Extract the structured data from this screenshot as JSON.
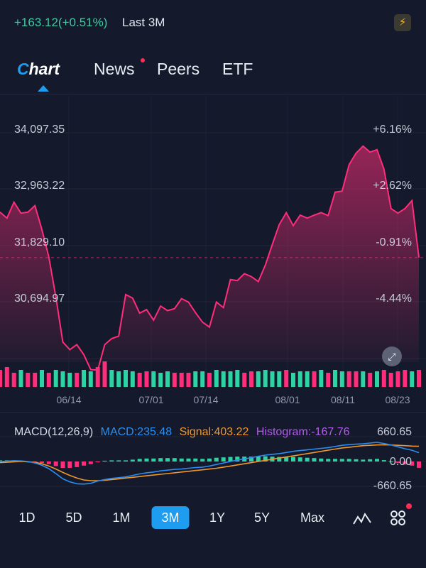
{
  "header": {
    "change": "+163.12(+0.51%)",
    "range_label": "Last 3M",
    "bolt_icon": "lightning-icon"
  },
  "tabs": [
    {
      "label": "Chart"
    },
    {
      "label": "News"
    },
    {
      "label": "Peers"
    },
    {
      "label": "ETF"
    }
  ],
  "colors": {
    "price_line": "#ff2d7a",
    "up": "#2ed3a4",
    "down": "#ff2d7a",
    "macd": "#2a8df0",
    "signal": "#f0962a",
    "histogram": "#b25ee8",
    "accent": "#1e9cf0"
  },
  "chart_data": [
    {
      "type": "area",
      "y_ticks": [
        "34,097.35",
        "32,963.22",
        "31,829.10",
        "30,694.97"
      ],
      "pct_ticks": [
        "+6.16%",
        "+2.62%",
        "-0.91%",
        "-4.44%"
      ],
      "x_ticks": [
        "06/14",
        "07/01",
        "07/14",
        "08/01",
        "08/11",
        "08/23"
      ],
      "ylim": [
        29800,
        34700
      ],
      "baseline": 31890,
      "prices": [
        32800,
        32680,
        33000,
        32780,
        32800,
        32930,
        32450,
        31900,
        31100,
        30200,
        30050,
        30150,
        29950,
        29650,
        29640,
        30150,
        30270,
        30320,
        31150,
        31080,
        30780,
        30850,
        30640,
        30920,
        30830,
        30870,
        31070,
        31000,
        30790,
        30600,
        30500,
        31000,
        30890,
        31450,
        31430,
        31570,
        31510,
        31410,
        31740,
        32150,
        32550,
        32790,
        32530,
        32740,
        32680,
        32740,
        32790,
        32730,
        33200,
        33220,
        33750,
        33980,
        34120,
        34000,
        34050,
        33660,
        32870,
        32780,
        32870,
        33030,
        31890
      ],
      "volume_up": [
        false,
        false,
        false,
        true,
        false,
        false,
        true,
        false,
        true,
        true,
        true,
        false,
        true,
        true,
        false,
        false,
        true,
        true,
        true,
        true,
        false,
        false,
        true,
        true,
        true,
        false,
        false,
        false,
        true,
        true,
        false,
        true,
        true,
        true,
        true,
        false,
        false,
        true,
        true,
        true,
        true,
        false,
        true,
        true,
        true,
        false,
        true,
        false,
        true,
        true,
        false,
        false,
        true,
        false,
        true,
        false,
        false,
        false,
        false,
        true,
        false
      ],
      "volume": [
        0.6,
        0.7,
        0.5,
        0.6,
        0.5,
        0.5,
        0.6,
        0.5,
        0.6,
        0.55,
        0.5,
        0.5,
        0.6,
        0.55,
        0.7,
        0.9,
        0.6,
        0.55,
        0.6,
        0.55,
        0.5,
        0.55,
        0.55,
        0.5,
        0.55,
        0.5,
        0.5,
        0.5,
        0.55,
        0.55,
        0.5,
        0.6,
        0.55,
        0.55,
        0.6,
        0.5,
        0.55,
        0.55,
        0.6,
        0.55,
        0.55,
        0.6,
        0.5,
        0.55,
        0.55,
        0.55,
        0.6,
        0.5,
        0.6,
        0.55,
        0.55,
        0.55,
        0.55,
        0.5,
        0.55,
        0.6,
        0.5,
        0.55,
        0.6,
        0.55,
        0.6
      ]
    },
    {
      "type": "line",
      "legend": {
        "title": "MACD(12,26,9)",
        "macd": "MACD:235.48",
        "signal": "Signal:403.22",
        "histogram": "Histogram:-167.76"
      },
      "y_ticks": [
        "660.65",
        "0.00",
        "-660.65"
      ],
      "ylim": [
        -660.65,
        660.65
      ],
      "macd": [
        0,
        10,
        20,
        15,
        0,
        -40,
        -100,
        -190,
        -320,
        -460,
        -540,
        -590,
        -600,
        -580,
        -520,
        -480,
        -450,
        -430,
        -410,
        -370,
        -330,
        -300,
        -280,
        -250,
        -230,
        -210,
        -200,
        -180,
        -160,
        -150,
        -120,
        -80,
        -40,
        0,
        40,
        70,
        100,
        140,
        170,
        190,
        210,
        240,
        270,
        290,
        310,
        330,
        350,
        370,
        400,
        430,
        450,
        460,
        470,
        490,
        510,
        480,
        440,
        390,
        340,
        300,
        235
      ],
      "signal": [
        -30,
        -20,
        -10,
        0,
        -10,
        -20,
        -60,
        -120,
        -200,
        -290,
        -370,
        -440,
        -490,
        -510,
        -510,
        -500,
        -480,
        -460,
        -440,
        -420,
        -400,
        -380,
        -360,
        -340,
        -320,
        -300,
        -280,
        -260,
        -240,
        -220,
        -200,
        -180,
        -150,
        -120,
        -90,
        -60,
        -30,
        0,
        30,
        60,
        90,
        120,
        150,
        180,
        210,
        240,
        270,
        300,
        330,
        360,
        380,
        400,
        420,
        430,
        440,
        445,
        440,
        430,
        420,
        410,
        403
      ],
      "histogram": [
        30,
        30,
        30,
        15,
        10,
        -20,
        -40,
        -70,
        -120,
        -170,
        -170,
        -150,
        -110,
        -70,
        -20,
        20,
        30,
        30,
        30,
        50,
        70,
        80,
        80,
        90,
        90,
        90,
        80,
        80,
        80,
        70,
        80,
        100,
        110,
        120,
        130,
        130,
        130,
        140,
        140,
        130,
        120,
        120,
        120,
        110,
        100,
        90,
        80,
        70,
        70,
        70,
        70,
        60,
        50,
        60,
        70,
        35,
        0,
        -40,
        -80,
        -110,
        -168
      ]
    }
  ],
  "fullscreen_icon": "fullscreen-icon",
  "ranges": [
    {
      "label": "1D"
    },
    {
      "label": "5D"
    },
    {
      "label": "1M"
    },
    {
      "label": "3M"
    },
    {
      "label": "1Y"
    },
    {
      "label": "5Y"
    },
    {
      "label": "Max"
    }
  ],
  "tools": {
    "indicator_icon": "indicator-icon",
    "layout_icon": "grid-icon"
  }
}
